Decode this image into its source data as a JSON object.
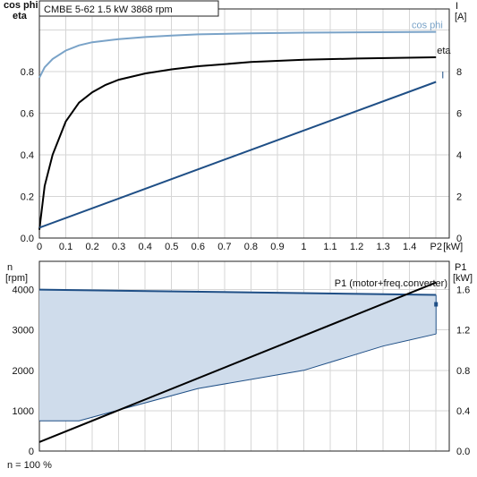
{
  "header": {
    "pump_model": "CMBE 5-62",
    "power": "1.5 kW",
    "speed": "3868 rpm"
  },
  "footer": {
    "speed_note": "n = 100 %"
  },
  "colors": {
    "cosphi": "#7aa3c8",
    "eta": "#000000",
    "current": "#1f4f86",
    "p1": "#000000",
    "area_fill": "#cfdceb",
    "area_edge": "#1f4f86",
    "grid": "#d6d6d6"
  },
  "chart_data": [
    {
      "type": "line",
      "xlabel": "P2 [kW]",
      "xlim": [
        0,
        1.55
      ],
      "x_ticks": [
        "0",
        "0.1",
        "0.2",
        "0.3",
        "0.4",
        "0.5",
        "0.6",
        "0.7",
        "0.8",
        "0.9",
        "1",
        "1.1",
        "1.2",
        "1.3",
        "1.4",
        "P2"
      ],
      "x_unit_label": "[kW]",
      "left_axis": {
        "label_line1": "cos phi",
        "label_line2": "eta",
        "ylim": [
          0,
          1.1
        ],
        "ticks": [
          "0.0",
          "0.2",
          "0.4",
          "0.6",
          "0.8"
        ]
      },
      "right_axis": {
        "label_line1": "I",
        "label_line2": "[A]",
        "ylim": [
          0,
          11
        ],
        "ticks": [
          "0",
          "2",
          "4",
          "6",
          "8"
        ]
      },
      "grid": true,
      "series": [
        {
          "name": "cos phi",
          "axis": "left",
          "x": [
            0,
            0.02,
            0.05,
            0.1,
            0.15,
            0.2,
            0.3,
            0.4,
            0.5,
            0.6,
            0.8,
            1.0,
            1.2,
            1.5
          ],
          "y": [
            0.77,
            0.82,
            0.86,
            0.9,
            0.925,
            0.94,
            0.955,
            0.965,
            0.972,
            0.978,
            0.983,
            0.986,
            0.988,
            0.99
          ]
        },
        {
          "name": "eta",
          "axis": "left",
          "x": [
            0,
            0.02,
            0.05,
            0.1,
            0.15,
            0.2,
            0.25,
            0.3,
            0.4,
            0.5,
            0.6,
            0.7,
            0.8,
            1.0,
            1.2,
            1.5
          ],
          "y": [
            0.04,
            0.25,
            0.4,
            0.56,
            0.65,
            0.7,
            0.735,
            0.76,
            0.79,
            0.81,
            0.825,
            0.835,
            0.845,
            0.856,
            0.862,
            0.868
          ]
        },
        {
          "name": "I",
          "axis": "right",
          "x": [
            0,
            1.5
          ],
          "y": [
            0.5,
            7.5
          ]
        }
      ]
    },
    {
      "type": "area",
      "xlim": [
        0,
        1.55
      ],
      "left_axis": {
        "label_line1": "n",
        "label_line2": "[rpm]",
        "ylim": [
          0,
          4700
        ],
        "ticks": [
          "0",
          "1000",
          "2000",
          "3000",
          "4000"
        ]
      },
      "right_axis": {
        "label_line1": "P1",
        "label_line2": "[kW]",
        "ylim": [
          0,
          1.88
        ],
        "ticks": [
          "0.0",
          "0.4",
          "0.8",
          "1.2",
          "1.6"
        ]
      },
      "grid": true,
      "speed_area": {
        "upper_x": [
          0,
          1.5
        ],
        "upper_y": [
          4000,
          3868
        ],
        "lower_x": [
          0,
          0.15,
          0.6,
          1.0,
          1.3,
          1.5
        ],
        "lower_y": [
          750,
          750,
          1550,
          2000,
          2600,
          2900
        ]
      },
      "series": [
        {
          "name": "P1 (motor+freq.converter)",
          "axis": "right",
          "x": [
            0,
            1.5
          ],
          "y": [
            0.09,
            1.67
          ]
        }
      ]
    }
  ]
}
